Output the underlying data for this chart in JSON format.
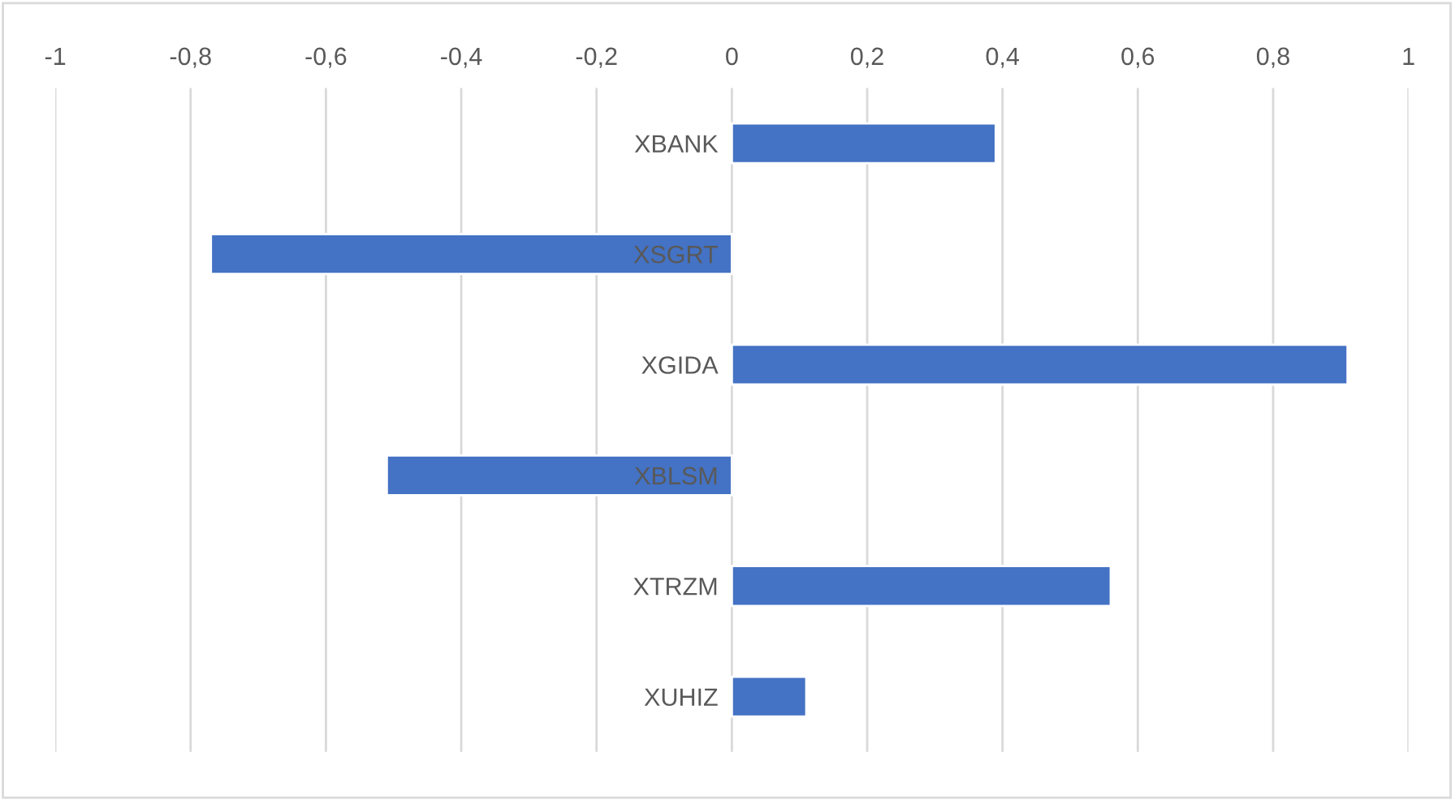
{
  "chart_data": {
    "type": "bar",
    "orientation": "horizontal",
    "categories": [
      "XBANK",
      "XSGRT",
      "XGIDA",
      "XBLSM",
      "XTRZM",
      "XUHIZ"
    ],
    "values": [
      0.39,
      -0.77,
      0.91,
      -0.51,
      0.56,
      0.11
    ],
    "color": "#4472c4",
    "xlim": [
      -1,
      1
    ],
    "xticks": [
      {
        "value": -1,
        "label": "-1"
      },
      {
        "value": -0.8,
        "label": "-0,8"
      },
      {
        "value": -0.6,
        "label": "-0,6"
      },
      {
        "value": -0.4,
        "label": "-0,4"
      },
      {
        "value": -0.2,
        "label": "-0,2"
      },
      {
        "value": 0,
        "label": "0"
      },
      {
        "value": 0.2,
        "label": "0,2"
      },
      {
        "value": 0.4,
        "label": "0,4"
      },
      {
        "value": 0.6,
        "label": "0,6"
      },
      {
        "value": 0.8,
        "label": "0,8"
      },
      {
        "value": 1,
        "label": "1"
      }
    ],
    "grid": "x"
  }
}
